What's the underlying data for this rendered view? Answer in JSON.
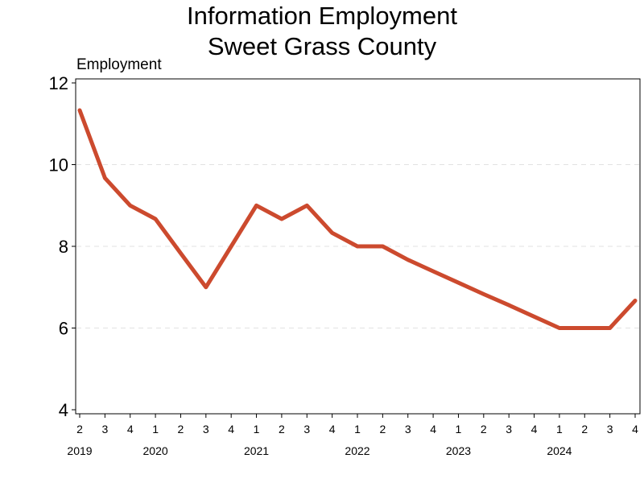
{
  "chart_data": {
    "type": "line",
    "title": [
      "Information Employment",
      "Sweet Grass County"
    ],
    "ylabel": "Employment",
    "xlabel": "",
    "ylim": [
      4,
      12
    ],
    "yticks": [
      4,
      6,
      8,
      10,
      12
    ],
    "grid": "horizontal dashed",
    "line_color": "#cc4a2e",
    "quarters": [
      "2",
      "3",
      "4",
      "1",
      "2",
      "3",
      "4",
      "1",
      "2",
      "3",
      "4",
      "1",
      "2",
      "3",
      "4",
      "1",
      "2",
      "3",
      "4",
      "1",
      "2",
      "3",
      "4"
    ],
    "years": [
      {
        "label": "2019",
        "index": 0
      },
      {
        "label": "2020",
        "index": 3
      },
      {
        "label": "2021",
        "index": 7
      },
      {
        "label": "2022",
        "index": 11
      },
      {
        "label": "2023",
        "index": 15
      },
      {
        "label": "2024",
        "index": 19
      }
    ],
    "series": [
      {
        "name": "Employment",
        "values": [
          11.33,
          9.67,
          9.0,
          8.67,
          7.83,
          7.0,
          8.0,
          9.0,
          8.67,
          9.0,
          8.33,
          8.0,
          8.0,
          7.67,
          7.39,
          7.11,
          6.83,
          6.56,
          6.28,
          6.0,
          6.0,
          6.0,
          6.67
        ]
      }
    ]
  }
}
